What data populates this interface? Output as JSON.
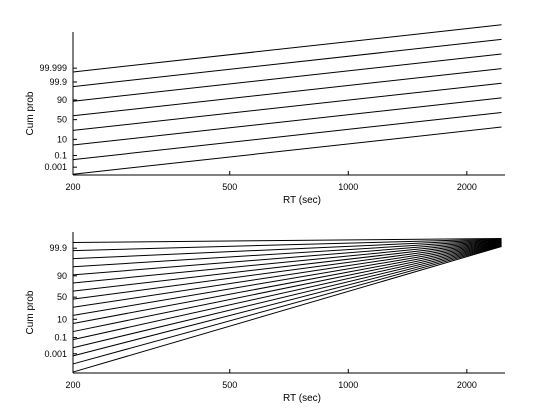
{
  "chart_data": [
    {
      "type": "line",
      "panel": "top",
      "xlabel": "RT (sec)",
      "ylabel": "Cum prob",
      "x_scale": "log",
      "xlim": [
        200,
        2500
      ],
      "x_ticks": [
        {
          "value": 200,
          "label": "200"
        },
        {
          "value": 500,
          "label": "500"
        },
        {
          "value": 1000,
          "label": "1000"
        },
        {
          "value": 2000,
          "label": "2000"
        }
      ],
      "y_scale": "probit",
      "ylim_z": [
        -3.6,
        5.7
      ],
      "y_ticks": [
        {
          "label": "0.001",
          "z": -3.09
        },
        {
          "label": "0.1",
          "z": -2.33
        },
        {
          "label": "10",
          "z": -1.28
        },
        {
          "label": "50",
          "z": 0
        },
        {
          "label": "90",
          "z": 1.28
        },
        {
          "label": "99.9",
          "z": 2.45
        },
        {
          "label": "99.999",
          "z": 3.35
        }
      ],
      "line_count": 8,
      "lines": {
        "z_at_200": {
          "start": -3.55,
          "step": 0.95
        },
        "z_slope_per_log10": 2.82
      },
      "grid": false,
      "legend": "none"
    },
    {
      "type": "line",
      "panel": "bottom",
      "xlabel": "RT (sec)",
      "ylabel": "Cum prob",
      "x_scale": "log",
      "xlim": [
        200,
        2500
      ],
      "x_ticks": [
        {
          "value": 200,
          "label": "200"
        },
        {
          "value": 500,
          "label": "500"
        },
        {
          "value": 1000,
          "label": "1000"
        },
        {
          "value": 2000,
          "label": "2000"
        }
      ],
      "y_scale": "probit",
      "ylim_z": [
        -4.1,
        3.3
      ],
      "y_ticks": [
        {
          "label": "0.001",
          "z": -3.09
        },
        {
          "label": "0.1",
          "z": -2.24
        },
        {
          "label": "10",
          "z": -1.28
        },
        {
          "label": "50",
          "z": -0.12
        },
        {
          "label": "90",
          "z": 1.0
        },
        {
          "label": "99.9",
          "z": 2.45
        }
      ],
      "line_count": 17,
      "lines": {
        "z_at_200": {
          "start": -4.05,
          "step": 0.425
        },
        "converge_at": {
          "x": 2450,
          "z_from": 2.54,
          "z_to": 2.96
        }
      },
      "grid": false,
      "legend": "none"
    }
  ]
}
